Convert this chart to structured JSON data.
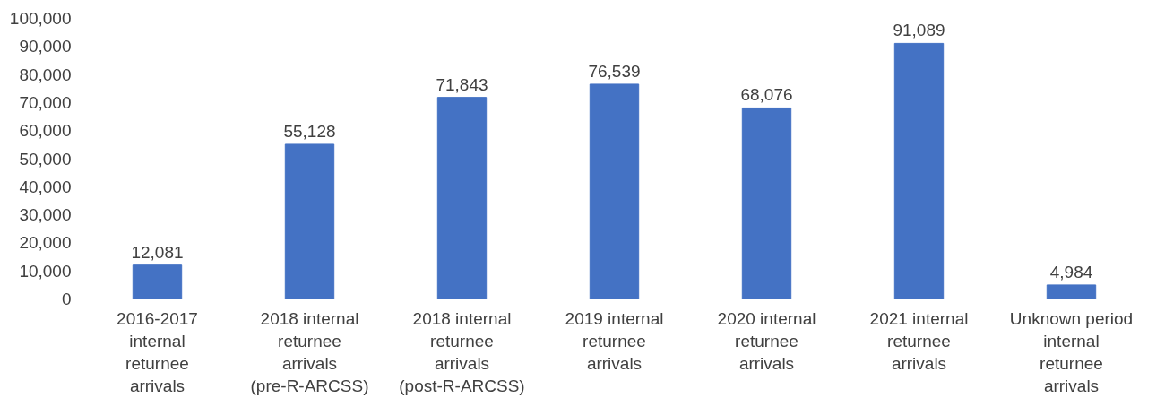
{
  "chart_data": {
    "type": "bar",
    "categories": [
      "2016-2017 internal returnee arrivals",
      "2018 internal returnee arrivals (pre-R-ARCSS)",
      "2018 internal returnee arrivals (post-R-ARCSS)",
      "2019 internal returnee arrivals",
      "2020 internal returnee arrivals",
      "2021 internal returnee arrivals",
      "Unknown period internal returnee arrivals"
    ],
    "values": [
      12081,
      55128,
      71843,
      76539,
      68076,
      91089,
      4984
    ],
    "color": "#4472c4",
    "ylim": [
      0,
      100000
    ],
    "yticks": [
      {
        "value": 0,
        "label": "0"
      },
      {
        "value": 10000,
        "label": "10,000"
      },
      {
        "value": 20000,
        "label": "20,000"
      },
      {
        "value": 30000,
        "label": "30,000"
      },
      {
        "value": 40000,
        "label": "40,000"
      },
      {
        "value": 50000,
        "label": "50,000"
      },
      {
        "value": 60000,
        "label": "60,000"
      },
      {
        "value": 70000,
        "label": "70,000"
      },
      {
        "value": 80000,
        "label": "80,000"
      },
      {
        "value": 90000,
        "label": "90,000"
      },
      {
        "value": 100000,
        "label": "100,000"
      }
    ],
    "value_labels": [
      "12,081",
      "55,128",
      "71,843",
      "76,539",
      "68,076",
      "91,089",
      "4,984"
    ],
    "grid": false
  }
}
